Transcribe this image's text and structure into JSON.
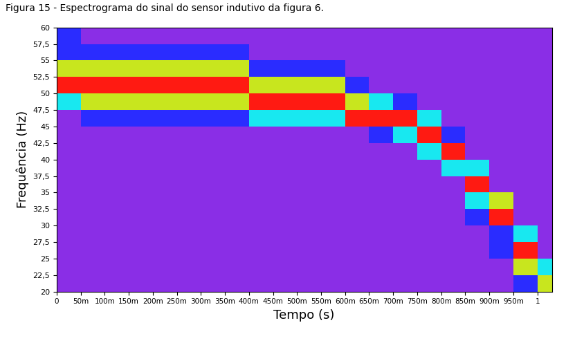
{
  "chart_data": {
    "type": "heatmap",
    "caption": "Figura 15 - Espectrograma do sinal do sensor indutivo da figura 6.",
    "x_label": "Tempo (s)",
    "y_label": "Frequência (Hz)",
    "xlim": [
      0,
      1.03
    ],
    "xticks": [
      0,
      {
        "value": 0.05,
        "label": "50m"
      },
      {
        "value": 0.1,
        "label": "100m"
      },
      {
        "value": 0.15,
        "label": "150m"
      },
      {
        "value": 0.2,
        "label": "200m"
      },
      {
        "value": 0.25,
        "label": "250m"
      },
      {
        "value": 0.3,
        "label": "300m"
      },
      {
        "value": 0.35,
        "label": "350m"
      },
      {
        "value": 0.4,
        "label": "400m"
      },
      {
        "value": 0.45,
        "label": "450m"
      },
      {
        "value": 0.5,
        "label": "500m"
      },
      {
        "value": 0.55,
        "label": "550m"
      },
      {
        "value": 0.6,
        "label": "600m"
      },
      {
        "value": 0.65,
        "label": "650m"
      },
      {
        "value": 0.7,
        "label": "700m"
      },
      {
        "value": 0.75,
        "label": "750m"
      },
      {
        "value": 0.8,
        "label": "800m"
      },
      {
        "value": 0.85,
        "label": "850m"
      },
      {
        "value": 0.9,
        "label": "900m"
      },
      {
        "value": 0.95,
        "label": "950m"
      },
      1
    ],
    "ylim": [
      20,
      60
    ],
    "yticks": [
      20,
      {
        "value": 22.5,
        "label": "22,5"
      },
      25,
      {
        "value": 27.5,
        "label": "27,5"
      },
      30,
      {
        "value": 32.5,
        "label": "32,5"
      },
      35,
      {
        "value": 37.5,
        "label": "37,5"
      },
      40,
      {
        "value": 42.5,
        "label": "42,5"
      },
      45,
      {
        "value": 47.5,
        "label": "47,5"
      },
      50,
      {
        "value": 52.5,
        "label": "52,5"
      },
      55,
      {
        "value": 57.5,
        "label": "57,5"
      },
      60
    ],
    "time_edges": [
      0,
      0.05,
      0.1,
      0.15,
      0.2,
      0.25,
      0.3,
      0.35,
      0.4,
      0.45,
      0.5,
      0.55,
      0.6,
      0.65,
      0.7,
      0.75,
      0.8,
      0.85,
      0.9,
      0.95,
      1.0,
      1.05
    ],
    "frequency_edges": [
      20,
      22.5,
      25,
      27.5,
      30,
      32.5,
      35,
      37.5,
      40,
      42.5,
      45,
      47.5,
      50,
      52.5,
      55,
      57.5,
      60
    ],
    "color_range": [
      0,
      4
    ],
    "colors": [
      "#8a2ee6",
      "#2a2cff",
      "#18e8f0",
      "#c8e61e",
      "#ff1a12"
    ],
    "cells": [
      [
        0,
        0,
        0,
        0,
        0,
        0,
        0,
        0,
        0,
        0,
        0,
        0,
        0,
        0,
        0,
        0,
        0,
        0,
        0,
        1,
        3
      ],
      [
        0,
        0,
        0,
        0,
        0,
        0,
        0,
        0,
        0,
        0,
        0,
        0,
        0,
        0,
        0,
        0,
        0,
        0,
        0,
        3,
        2
      ],
      [
        0,
        0,
        0,
        0,
        0,
        0,
        0,
        0,
        0,
        0,
        0,
        0,
        0,
        0,
        0,
        0,
        0,
        0,
        1,
        4,
        0
      ],
      [
        0,
        0,
        0,
        0,
        0,
        0,
        0,
        0,
        0,
        0,
        0,
        0,
        0,
        0,
        0,
        0,
        0,
        0,
        1,
        2,
        0
      ],
      [
        0,
        0,
        0,
        0,
        0,
        0,
        0,
        0,
        0,
        0,
        0,
        0,
        0,
        0,
        0,
        0,
        0,
        1,
        4,
        0,
        0
      ],
      [
        0,
        0,
        0,
        0,
        0,
        0,
        0,
        0,
        0,
        0,
        0,
        0,
        0,
        0,
        0,
        0,
        0,
        2,
        3,
        0,
        0
      ],
      [
        0,
        0,
        0,
        0,
        0,
        0,
        0,
        0,
        0,
        0,
        0,
        0,
        0,
        0,
        0,
        0,
        0,
        4,
        0,
        0,
        0
      ],
      [
        0,
        0,
        0,
        0,
        0,
        0,
        0,
        0,
        0,
        0,
        0,
        0,
        0,
        0,
        0,
        0,
        2,
        2,
        0,
        0,
        0
      ],
      [
        0,
        0,
        0,
        0,
        0,
        0,
        0,
        0,
        0,
        0,
        0,
        0,
        0,
        0,
        0,
        2,
        4,
        0,
        0,
        0,
        0
      ],
      [
        0,
        0,
        0,
        0,
        0,
        0,
        0,
        0,
        0,
        0,
        0,
        0,
        0,
        1,
        2,
        4,
        1,
        0,
        0,
        0,
        0
      ],
      [
        0,
        1,
        1,
        1,
        1,
        1,
        1,
        1,
        2,
        2,
        2,
        2,
        4,
        4,
        4,
        2,
        0,
        0,
        0,
        0,
        0
      ],
      [
        2,
        3,
        3,
        3,
        3,
        3,
        3,
        3,
        4,
        4,
        4,
        4,
        3,
        2,
        1,
        0,
        0,
        0,
        0,
        0,
        0
      ],
      [
        4,
        4,
        4,
        4,
        4,
        4,
        4,
        4,
        3,
        3,
        3,
        3,
        1,
        0,
        0,
        0,
        0,
        0,
        0,
        0,
        0
      ],
      [
        3,
        3,
        3,
        3,
        3,
        3,
        3,
        3,
        1,
        1,
        1,
        1,
        0,
        0,
        0,
        0,
        0,
        0,
        0,
        0,
        0
      ],
      [
        1,
        1,
        1,
        1,
        1,
        1,
        1,
        1,
        0,
        0,
        0,
        0,
        0,
        0,
        0,
        0,
        0,
        0,
        0,
        0,
        0
      ],
      [
        1,
        0,
        0,
        0,
        0,
        0,
        0,
        0,
        0,
        0,
        0,
        0,
        0,
        0,
        0,
        0,
        0,
        0,
        0,
        0,
        0
      ]
    ]
  }
}
